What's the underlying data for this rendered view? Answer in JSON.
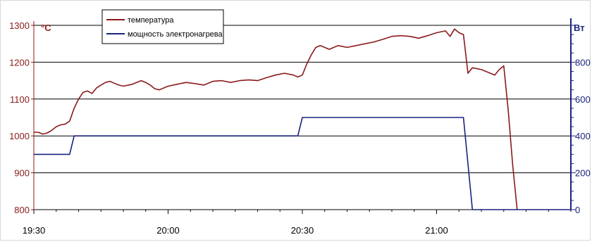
{
  "chart_data": {
    "type": "line",
    "x_unit": "time",
    "xlim": [
      "19:30",
      "21:30"
    ],
    "x_ticks": [
      "19:30",
      "20:00",
      "20:30",
      "21:00"
    ],
    "y_left": {
      "unit_label": "°C",
      "lim": [
        800,
        1300
      ],
      "ticks": [
        "800",
        "900",
        "1000",
        "1100",
        "1200",
        "1300"
      ],
      "color": "#8b1a1a"
    },
    "y_right": {
      "unit_label": "Вт",
      "lim": [
        0,
        1000
      ],
      "ticks": [
        "0",
        "200",
        "400",
        "600",
        "800"
      ],
      "color": "#1a237e"
    },
    "grid": "horizontal",
    "legend_position": "top-left",
    "series": [
      {
        "name": "температура",
        "axis": "left",
        "color": "#8b1a1a",
        "points": [
          [
            "19:30",
            1010
          ],
          [
            "19:31",
            1010
          ],
          [
            "19:32",
            1005
          ],
          [
            "19:33",
            1008
          ],
          [
            "19:34",
            1015
          ],
          [
            "19:35",
            1025
          ],
          [
            "19:36",
            1030
          ],
          [
            "19:37",
            1032
          ],
          [
            "19:38",
            1040
          ],
          [
            "19:39",
            1075
          ],
          [
            "19:40",
            1100
          ],
          [
            "19:41",
            1118
          ],
          [
            "19:42",
            1122
          ],
          [
            "19:43",
            1115
          ],
          [
            "19:44",
            1130
          ],
          [
            "19:45",
            1138
          ],
          [
            "19:46",
            1145
          ],
          [
            "19:47",
            1148
          ],
          [
            "19:48",
            1143
          ],
          [
            "19:49",
            1138
          ],
          [
            "19:50",
            1135
          ],
          [
            "19:52",
            1140
          ],
          [
            "19:54",
            1150
          ],
          [
            "19:55",
            1145
          ],
          [
            "19:56",
            1138
          ],
          [
            "19:57",
            1128
          ],
          [
            "19:58",
            1125
          ],
          [
            "20:00",
            1135
          ],
          [
            "20:02",
            1140
          ],
          [
            "20:04",
            1145
          ],
          [
            "20:06",
            1142
          ],
          [
            "20:08",
            1138
          ],
          [
            "20:10",
            1148
          ],
          [
            "20:12",
            1150
          ],
          [
            "20:14",
            1145
          ],
          [
            "20:16",
            1150
          ],
          [
            "20:18",
            1152
          ],
          [
            "20:20",
            1150
          ],
          [
            "20:22",
            1158
          ],
          [
            "20:24",
            1165
          ],
          [
            "20:26",
            1170
          ],
          [
            "20:28",
            1165
          ],
          [
            "20:29",
            1160
          ],
          [
            "20:30",
            1165
          ],
          [
            "20:31",
            1195
          ],
          [
            "20:32",
            1220
          ],
          [
            "20:33",
            1240
          ],
          [
            "20:34",
            1245
          ],
          [
            "20:35",
            1240
          ],
          [
            "20:36",
            1235
          ],
          [
            "20:38",
            1245
          ],
          [
            "20:40",
            1240
          ],
          [
            "20:42",
            1245
          ],
          [
            "20:44",
            1250
          ],
          [
            "20:46",
            1255
          ],
          [
            "20:48",
            1262
          ],
          [
            "20:50",
            1270
          ],
          [
            "20:52",
            1272
          ],
          [
            "20:54",
            1270
          ],
          [
            "20:56",
            1265
          ],
          [
            "20:58",
            1272
          ],
          [
            "21:00",
            1280
          ],
          [
            "21:02",
            1285
          ],
          [
            "21:03",
            1270
          ],
          [
            "21:04",
            1290
          ],
          [
            "21:05",
            1280
          ],
          [
            "21:06",
            1275
          ],
          [
            "21:07",
            1170
          ],
          [
            "21:08",
            1185
          ],
          [
            "21:10",
            1180
          ],
          [
            "21:12",
            1170
          ],
          [
            "21:13",
            1165
          ],
          [
            "21:14",
            1180
          ],
          [
            "21:15",
            1190
          ],
          [
            "21:16",
            1070
          ],
          [
            "21:17",
            920
          ],
          [
            "21:18",
            800
          ]
        ]
      },
      {
        "name": "мощность электронагрева",
        "axis": "right",
        "color": "#1a237e",
        "points": [
          [
            "19:30",
            300
          ],
          [
            "19:38",
            300
          ],
          [
            "19:39",
            400
          ],
          [
            "20:29",
            400
          ],
          [
            "20:30",
            500
          ],
          [
            "21:06",
            500
          ],
          [
            "21:08",
            0
          ],
          [
            "21:30",
            0
          ]
        ]
      }
    ]
  }
}
